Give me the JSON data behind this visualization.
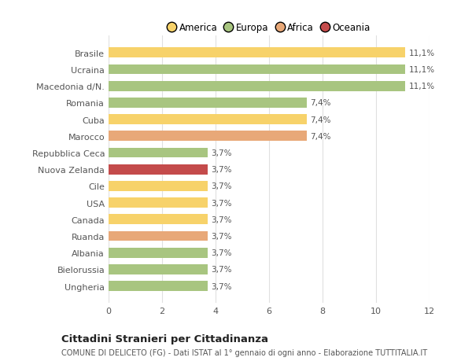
{
  "categories": [
    "Ungheria",
    "Bielorussia",
    "Albania",
    "Ruanda",
    "Canada",
    "USA",
    "Cile",
    "Nuova Zelanda",
    "Repubblica Ceca",
    "Marocco",
    "Cuba",
    "Romania",
    "Macedonia d/N.",
    "Ucraina",
    "Brasile"
  ],
  "values": [
    3.7,
    3.7,
    3.7,
    3.7,
    3.7,
    3.7,
    3.7,
    3.7,
    3.7,
    7.4,
    7.4,
    7.4,
    11.1,
    11.1,
    11.1
  ],
  "colors": [
    "#a8c580",
    "#a8c580",
    "#a8c580",
    "#e8a878",
    "#f7d26a",
    "#f7d26a",
    "#f7d26a",
    "#c44b4b",
    "#a8c580",
    "#e8a878",
    "#f7d26a",
    "#a8c580",
    "#a8c580",
    "#a8c580",
    "#f7d26a"
  ],
  "labels": [
    "3,7%",
    "3,7%",
    "3,7%",
    "3,7%",
    "3,7%",
    "3,7%",
    "3,7%",
    "3,7%",
    "3,7%",
    "7,4%",
    "7,4%",
    "7,4%",
    "11,1%",
    "11,1%",
    "11,1%"
  ],
  "legend_labels": [
    "America",
    "Europa",
    "Africa",
    "Oceania"
  ],
  "legend_colors": [
    "#f7d26a",
    "#a8c580",
    "#e8a878",
    "#c44b4b"
  ],
  "title": "Cittadini Stranieri per Cittadinanza",
  "subtitle": "COMUNE DI DELICETO (FG) - Dati ISTAT al 1° gennaio di ogni anno - Elaborazione TUTTITALIA.IT",
  "xlim": [
    0,
    12
  ],
  "xticks": [
    0,
    2,
    4,
    6,
    8,
    10,
    12
  ],
  "background_color": "#ffffff",
  "bar_height": 0.6,
  "grid_color": "#e0e0e0"
}
